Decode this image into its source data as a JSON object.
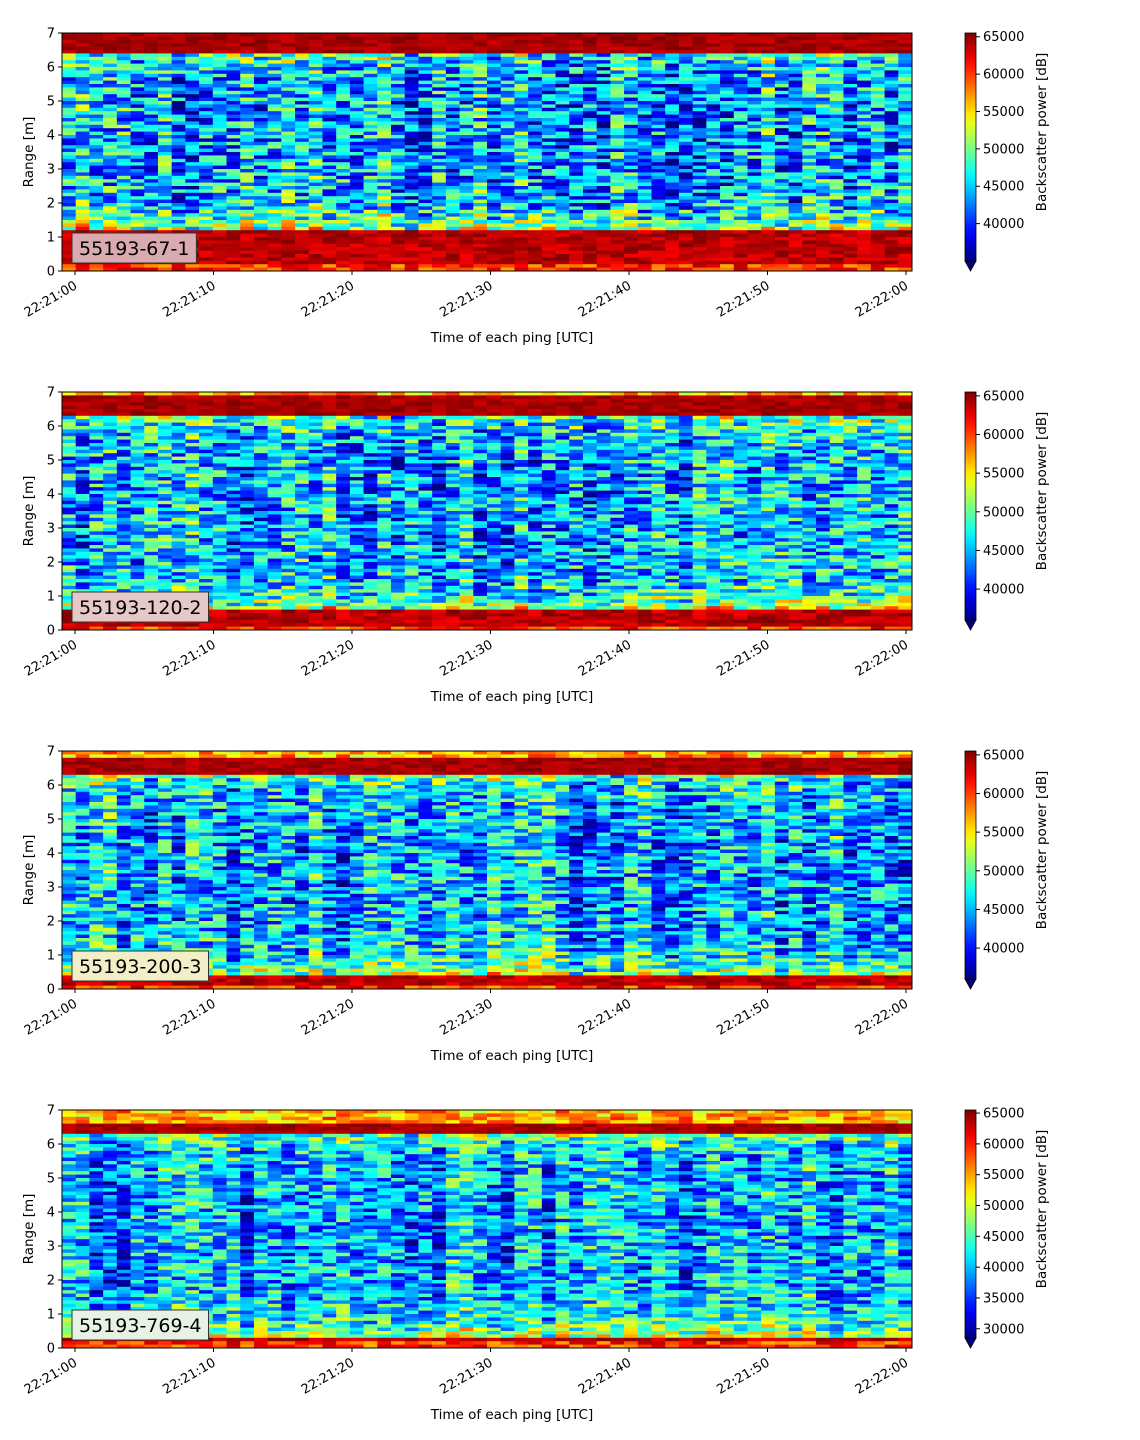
{
  "chart_data": [
    {
      "type": "heatmap",
      "label": "55193-67-1",
      "xlabel": "Time of each ping [UTC]",
      "ylabel": "Range [m]",
      "colorbar_label": "Backscatter power [dB]",
      "x_range": [
        "22:21:00",
        "22:22:00"
      ],
      "xticks": [
        "22:21:00",
        "22:21:10",
        "22:21:20",
        "22:21:30",
        "22:21:40",
        "22:21:50",
        "22:22:00"
      ],
      "ylim": [
        0,
        7
      ],
      "yticks": [
        "0",
        "1",
        "2",
        "3",
        "4",
        "5",
        "6",
        "7"
      ],
      "clim": [
        35000,
        65500
      ],
      "colorbar_ticks": [
        "40000",
        "45000",
        "50000",
        "55000",
        "60000",
        "65000"
      ],
      "colormap": "jet",
      "colorbar_extend": "min",
      "label_box_color": "#d9aab0",
      "features": {
        "bottom_band_m": [
          0.2,
          1.2
        ],
        "surface_band_m": [
          6.45,
          7.0
        ],
        "noise_level": 0.35
      }
    },
    {
      "type": "heatmap",
      "label": "55193-120-2",
      "xlabel": "Time of each ping [UTC]",
      "ylabel": "Range [m]",
      "colorbar_label": "Backscatter power [dB]",
      "x_range": [
        "22:21:00",
        "22:22:00"
      ],
      "xticks": [
        "22:21:00",
        "22:21:10",
        "22:21:20",
        "22:21:30",
        "22:21:40",
        "22:21:50",
        "22:22:00"
      ],
      "ylim": [
        0,
        7
      ],
      "yticks": [
        "0",
        "1",
        "2",
        "3",
        "4",
        "5",
        "6",
        "7"
      ],
      "clim": [
        36000,
        65500
      ],
      "colorbar_ticks": [
        "40000",
        "45000",
        "50000",
        "55000",
        "60000",
        "65000"
      ],
      "colormap": "jet",
      "colorbar_extend": "min",
      "label_box_color": "#e6c8c8",
      "features": {
        "bottom_band_m": [
          0.15,
          0.6
        ],
        "surface_band_m": [
          6.35,
          6.9
        ],
        "noise_level": 0.33
      }
    },
    {
      "type": "heatmap",
      "label": "55193-200-3",
      "xlabel": "Time of each ping [UTC]",
      "ylabel": "Range [m]",
      "colorbar_label": "Backscatter power [dB]",
      "x_range": [
        "22:21:00",
        "22:22:00"
      ],
      "xticks": [
        "22:21:00",
        "22:21:10",
        "22:21:20",
        "22:21:30",
        "22:21:40",
        "22:21:50",
        "22:22:00"
      ],
      "ylim": [
        0,
        7
      ],
      "yticks": [
        "0",
        "1",
        "2",
        "3",
        "4",
        "5",
        "6",
        "7"
      ],
      "clim": [
        36000,
        65500
      ],
      "colorbar_ticks": [
        "40000",
        "45000",
        "50000",
        "55000",
        "60000",
        "65000"
      ],
      "colormap": "jet",
      "colorbar_extend": "min",
      "label_box_color": "#f2efc8",
      "features": {
        "bottom_band_m": [
          0.15,
          0.4
        ],
        "surface_band_m": [
          6.3,
          6.8
        ],
        "noise_level": 0.32
      }
    },
    {
      "type": "heatmap",
      "label": "55193-769-4",
      "xlabel": "Time of each ping [UTC]",
      "ylabel": "Range [m]",
      "colorbar_label": "Backscatter power [dB]",
      "x_range": [
        "22:21:00",
        "22:22:00"
      ],
      "xticks": [
        "22:21:00",
        "22:21:10",
        "22:21:20",
        "22:21:30",
        "22:21:40",
        "22:21:50",
        "22:22:00"
      ],
      "ylim": [
        0,
        7
      ],
      "yticks": [
        "0",
        "1",
        "2",
        "3",
        "4",
        "5",
        "6",
        "7"
      ],
      "clim": [
        28500,
        65500
      ],
      "colorbar_ticks": [
        "30000",
        "35000",
        "40000",
        "45000",
        "50000",
        "55000",
        "60000",
        "65000"
      ],
      "colormap": "jet",
      "colorbar_extend": "min",
      "label_box_color": "#e8f2e4",
      "features": {
        "bottom_band_m": [
          0.18,
          0.32
        ],
        "surface_band_m": [
          6.3,
          6.55
        ],
        "noise_level": 0.3
      }
    }
  ]
}
